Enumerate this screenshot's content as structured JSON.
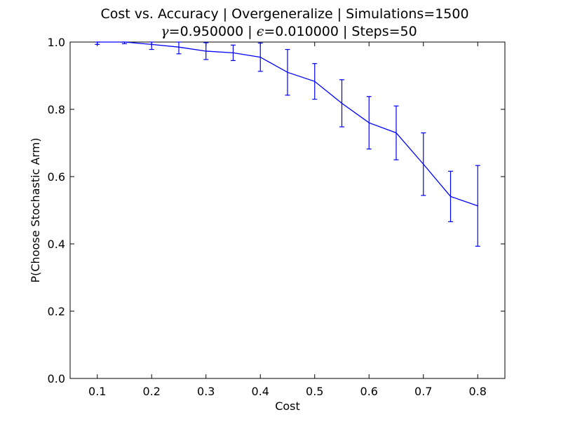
{
  "chart_data": {
    "type": "line",
    "title_line1": "Cost vs. Accuracy | Overgeneralize | Simulations=1500",
    "title_line2": {
      "gamma_symbol": "γ",
      "gamma_text": "=0.950000 | ",
      "epsilon_symbol": "ϵ",
      "epsilon_text": "=0.010000 | Steps=50"
    },
    "xlabel": "Cost",
    "ylabel": "P(Choose Stochastic Arm)",
    "xlim": [
      0.05,
      0.85
    ],
    "ylim": [
      0.0,
      1.0
    ],
    "x_ticks": [
      0.1,
      0.2,
      0.3,
      0.4,
      0.5,
      0.6,
      0.7,
      0.8
    ],
    "x_tick_labels": [
      "0.1",
      "0.2",
      "0.3",
      "0.4",
      "0.5",
      "0.6",
      "0.7",
      "0.8"
    ],
    "y_ticks": [
      0.0,
      0.2,
      0.4,
      0.6,
      0.8,
      1.0
    ],
    "y_tick_labels": [
      "0.0",
      "0.2",
      "0.4",
      "0.6",
      "0.8",
      "1.0"
    ],
    "grid": false,
    "line_color": "#0000ff",
    "series": [
      {
        "x": [
          0.1,
          0.15,
          0.2,
          0.25,
          0.3,
          0.35,
          0.4,
          0.45,
          0.5,
          0.55,
          0.6,
          0.65,
          0.7,
          0.75,
          0.8
        ],
        "y": [
          1.0,
          1.0,
          0.993,
          0.985,
          0.973,
          0.968,
          0.955,
          0.91,
          0.883,
          0.818,
          0.76,
          0.73,
          0.637,
          0.541,
          0.513
        ],
        "error": [
          0.007,
          0.005,
          0.015,
          0.02,
          0.025,
          0.023,
          0.042,
          0.068,
          0.053,
          0.07,
          0.078,
          0.08,
          0.093,
          0.075,
          0.12
        ]
      }
    ]
  }
}
